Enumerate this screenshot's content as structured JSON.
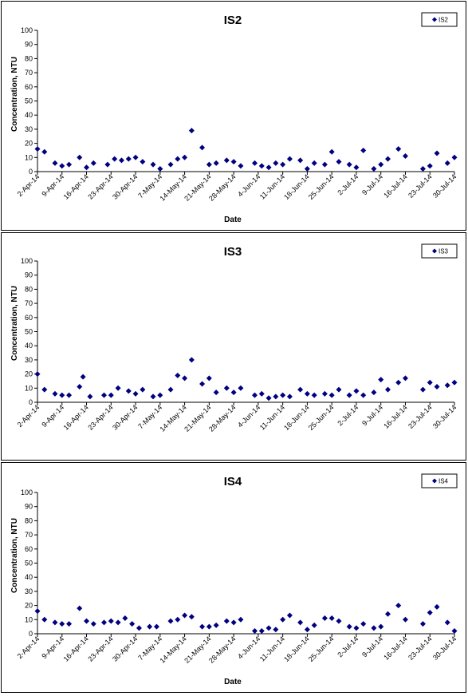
{
  "chart_data": [
    {
      "type": "scatter",
      "title": "IS2",
      "xlabel": "Date",
      "ylabel": "Concentration, NTU",
      "ylim": [
        0,
        100
      ],
      "yticks": [
        0,
        10,
        20,
        30,
        40,
        50,
        60,
        70,
        80,
        90,
        100
      ],
      "xlim": [
        "2014-04-02",
        "2014-07-30"
      ],
      "xtick_labels": [
        "2-Apr-14",
        "9-Apr-14",
        "16-Apr-14",
        "23-Apr-14",
        "30-Apr-14",
        "7-May-14",
        "14-May-14",
        "21-May-14",
        "28-May-14",
        "4-Jun-14",
        "11-Jun-14",
        "18-Jun-14",
        "25-Jun-14",
        "2-Jul-14",
        "9-Jul-14",
        "16-Jul-14",
        "23-Jul-14",
        "30-Jul-14"
      ],
      "grid": false,
      "legend": "top-right",
      "series": [
        {
          "name": "IS2",
          "color": "#000080",
          "points": [
            [
              "2014-04-02",
              16
            ],
            [
              "2014-04-04",
              14
            ],
            [
              "2014-04-07",
              6
            ],
            [
              "2014-04-09",
              4
            ],
            [
              "2014-04-11",
              5
            ],
            [
              "2014-04-14",
              10
            ],
            [
              "2014-04-16",
              3
            ],
            [
              "2014-04-18",
              6
            ],
            [
              "2014-04-22",
              5
            ],
            [
              "2014-04-24",
              9
            ],
            [
              "2014-04-26",
              8
            ],
            [
              "2014-04-28",
              9
            ],
            [
              "2014-04-30",
              10
            ],
            [
              "2014-05-02",
              7
            ],
            [
              "2014-05-05",
              5
            ],
            [
              "2014-05-07",
              2
            ],
            [
              "2014-05-10",
              5
            ],
            [
              "2014-05-12",
              9
            ],
            [
              "2014-05-14",
              10
            ],
            [
              "2014-05-16",
              29
            ],
            [
              "2014-05-19",
              17
            ],
            [
              "2014-05-21",
              5
            ],
            [
              "2014-05-23",
              6
            ],
            [
              "2014-05-26",
              8
            ],
            [
              "2014-05-28",
              7
            ],
            [
              "2014-05-30",
              4
            ],
            [
              "2014-06-03",
              6
            ],
            [
              "2014-06-05",
              4
            ],
            [
              "2014-06-07",
              3
            ],
            [
              "2014-06-09",
              6
            ],
            [
              "2014-06-11",
              5
            ],
            [
              "2014-06-13",
              9
            ],
            [
              "2014-06-16",
              8
            ],
            [
              "2014-06-18",
              2
            ],
            [
              "2014-06-20",
              6
            ],
            [
              "2014-06-23",
              5
            ],
            [
              "2014-06-25",
              14
            ],
            [
              "2014-06-27",
              7
            ],
            [
              "2014-06-30",
              5
            ],
            [
              "2014-07-02",
              3
            ],
            [
              "2014-07-04",
              15
            ],
            [
              "2014-07-07",
              2
            ],
            [
              "2014-07-09",
              5
            ],
            [
              "2014-07-11",
              9
            ],
            [
              "2014-07-14",
              16
            ],
            [
              "2014-07-16",
              11
            ],
            [
              "2014-07-21",
              2
            ],
            [
              "2014-07-23",
              4
            ],
            [
              "2014-07-25",
              13
            ],
            [
              "2014-07-28",
              6
            ],
            [
              "2014-07-30",
              10
            ]
          ]
        }
      ]
    },
    {
      "type": "scatter",
      "title": "IS3",
      "xlabel": "",
      "ylabel": "Concentration, NTU",
      "ylim": [
        0,
        100
      ],
      "yticks": [
        0,
        10,
        20,
        30,
        40,
        50,
        60,
        70,
        80,
        90,
        100
      ],
      "xlim": [
        "2014-04-02",
        "2014-07-30"
      ],
      "xtick_labels": [
        "2-Apr-14",
        "9-Apr-14",
        "16-Apr-14",
        "23-Apr-14",
        "30-Apr-14",
        "7-May-14",
        "14-May-14",
        "21-May-14",
        "28-May-14",
        "4-Jun-14",
        "11-Jun-14",
        "18-Jun-14",
        "25-Jun-14",
        "2-Jul-14",
        "9-Jul-14",
        "16-Jul-14",
        "23-Jul-14",
        "30-Jul-14"
      ],
      "grid": false,
      "legend": "top-right",
      "series": [
        {
          "name": "IS3",
          "color": "#000080",
          "points": [
            [
              "2014-04-02",
              20
            ],
            [
              "2014-04-04",
              9
            ],
            [
              "2014-04-07",
              6
            ],
            [
              "2014-04-09",
              5
            ],
            [
              "2014-04-11",
              5
            ],
            [
              "2014-04-14",
              11
            ],
            [
              "2014-04-15",
              18
            ],
            [
              "2014-04-17",
              4
            ],
            [
              "2014-04-21",
              5
            ],
            [
              "2014-04-23",
              5
            ],
            [
              "2014-04-25",
              10
            ],
            [
              "2014-04-28",
              8
            ],
            [
              "2014-04-30",
              6
            ],
            [
              "2014-05-02",
              9
            ],
            [
              "2014-05-05",
              4
            ],
            [
              "2014-05-07",
              5
            ],
            [
              "2014-05-10",
              9
            ],
            [
              "2014-05-12",
              19
            ],
            [
              "2014-05-14",
              17
            ],
            [
              "2014-05-16",
              30
            ],
            [
              "2014-05-19",
              13
            ],
            [
              "2014-05-21",
              17
            ],
            [
              "2014-05-23",
              7
            ],
            [
              "2014-05-26",
              10
            ],
            [
              "2014-05-28",
              7
            ],
            [
              "2014-05-30",
              10
            ],
            [
              "2014-06-03",
              5
            ],
            [
              "2014-06-05",
              6
            ],
            [
              "2014-06-07",
              3
            ],
            [
              "2014-06-09",
              4
            ],
            [
              "2014-06-11",
              5
            ],
            [
              "2014-06-13",
              4
            ],
            [
              "2014-06-16",
              9
            ],
            [
              "2014-06-18",
              6
            ],
            [
              "2014-06-20",
              5
            ],
            [
              "2014-06-23",
              6
            ],
            [
              "2014-06-25",
              5
            ],
            [
              "2014-06-27",
              9
            ],
            [
              "2014-06-30",
              5
            ],
            [
              "2014-07-02",
              8
            ],
            [
              "2014-07-04",
              5
            ],
            [
              "2014-07-07",
              7
            ],
            [
              "2014-07-09",
              16
            ],
            [
              "2014-07-11",
              9
            ],
            [
              "2014-07-14",
              14
            ],
            [
              "2014-07-16",
              17
            ],
            [
              "2014-07-21",
              9
            ],
            [
              "2014-07-23",
              14
            ],
            [
              "2014-07-25",
              11
            ],
            [
              "2014-07-28",
              12
            ],
            [
              "2014-07-30",
              14
            ]
          ]
        }
      ]
    },
    {
      "type": "scatter",
      "title": "IS4",
      "xlabel": "Date",
      "ylabel": "Concentration, NTU",
      "ylim": [
        0,
        100
      ],
      "yticks": [
        0,
        10,
        20,
        30,
        40,
        50,
        60,
        70,
        80,
        90,
        100
      ],
      "xlim": [
        "2014-04-02",
        "2014-07-30"
      ],
      "xtick_labels": [
        "2-Apr-14",
        "9-Apr-14",
        "16-Apr-14",
        "23-Apr-14",
        "30-Apr-14",
        "7-May-14",
        "14-May-14",
        "21-May-14",
        "28-May-14",
        "4-Jun-14",
        "11-Jun-14",
        "18-Jun-14",
        "25-Jun-14",
        "2-Jul-14",
        "9-Jul-14",
        "16-Jul-14",
        "23-Jul-14",
        "30-Jul-14"
      ],
      "grid": false,
      "legend": "top-right",
      "series": [
        {
          "name": "IS4",
          "color": "#000080",
          "points": [
            [
              "2014-04-02",
              16
            ],
            [
              "2014-04-04",
              10
            ],
            [
              "2014-04-07",
              8
            ],
            [
              "2014-04-09",
              7
            ],
            [
              "2014-04-11",
              7
            ],
            [
              "2014-04-14",
              18
            ],
            [
              "2014-04-16",
              9
            ],
            [
              "2014-04-18",
              7
            ],
            [
              "2014-04-21",
              8
            ],
            [
              "2014-04-23",
              9
            ],
            [
              "2014-04-25",
              8
            ],
            [
              "2014-04-27",
              11
            ],
            [
              "2014-04-29",
              7
            ],
            [
              "2014-05-01",
              4
            ],
            [
              "2014-05-04",
              5
            ],
            [
              "2014-05-06",
              5
            ],
            [
              "2014-05-10",
              9
            ],
            [
              "2014-05-12",
              10
            ],
            [
              "2014-05-14",
              13
            ],
            [
              "2014-05-16",
              12
            ],
            [
              "2014-05-19",
              5
            ],
            [
              "2014-05-21",
              5
            ],
            [
              "2014-05-23",
              6
            ],
            [
              "2014-05-26",
              9
            ],
            [
              "2014-05-28",
              8
            ],
            [
              "2014-05-30",
              10
            ],
            [
              "2014-06-03",
              2
            ],
            [
              "2014-06-05",
              2
            ],
            [
              "2014-06-07",
              4
            ],
            [
              "2014-06-09",
              3
            ],
            [
              "2014-06-11",
              10
            ],
            [
              "2014-06-13",
              13
            ],
            [
              "2014-06-16",
              8
            ],
            [
              "2014-06-18",
              3
            ],
            [
              "2014-06-20",
              6
            ],
            [
              "2014-06-23",
              11
            ],
            [
              "2014-06-25",
              11
            ],
            [
              "2014-06-27",
              9
            ],
            [
              "2014-06-30",
              5
            ],
            [
              "2014-07-02",
              4
            ],
            [
              "2014-07-04",
              7
            ],
            [
              "2014-07-07",
              4
            ],
            [
              "2014-07-09",
              5
            ],
            [
              "2014-07-11",
              14
            ],
            [
              "2014-07-14",
              20
            ],
            [
              "2014-07-16",
              10
            ],
            [
              "2014-07-21",
              7
            ],
            [
              "2014-07-23",
              15
            ],
            [
              "2014-07-25",
              19
            ],
            [
              "2014-07-28",
              8
            ],
            [
              "2014-07-30",
              2
            ]
          ]
        }
      ]
    }
  ]
}
